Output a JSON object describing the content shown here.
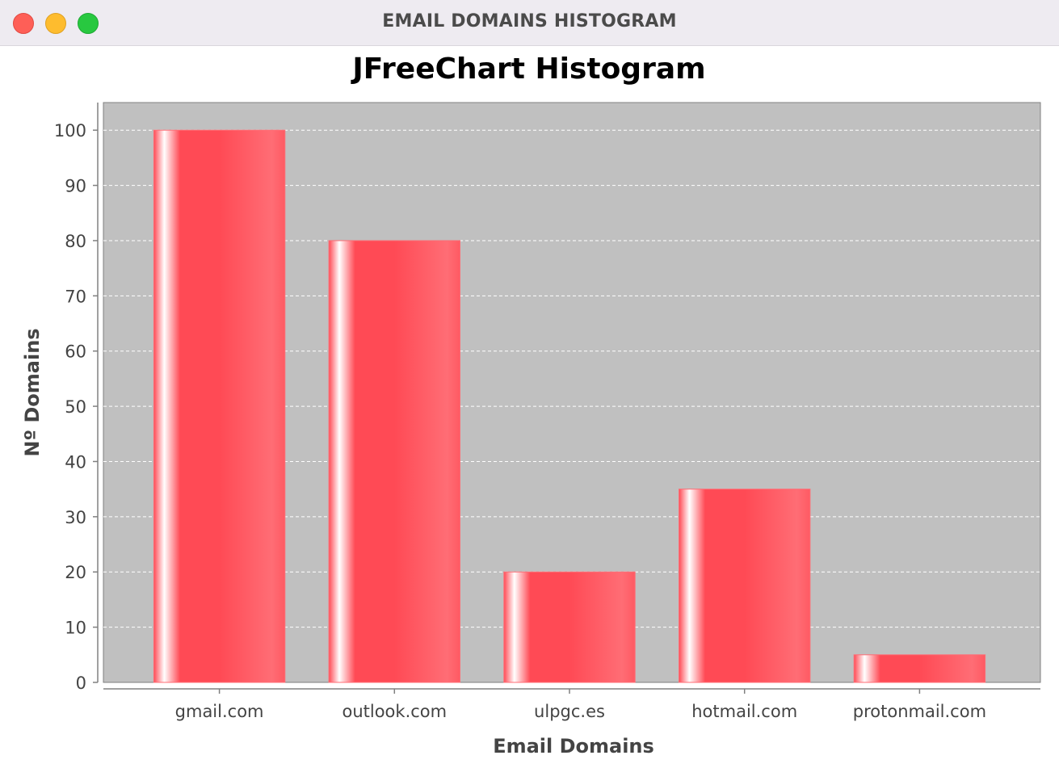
{
  "window": {
    "title": "EMAIL DOMAINS HISTOGRAM"
  },
  "colors": {
    "plot_background": "#c0c0c0",
    "bar": "#ff4a55",
    "bar_highlight": "#ffffff",
    "gridline": "#ffffff"
  },
  "chart_data": {
    "type": "bar",
    "title": "JFreeChart Histogram",
    "xlabel": "Email Domains",
    "ylabel": "Nº Domains",
    "categories": [
      "gmail.com",
      "outlook.com",
      "ulpgc.es",
      "hotmail.com",
      "protonmail.com"
    ],
    "values": [
      100,
      80,
      20,
      35,
      5
    ],
    "ylim": [
      0,
      105
    ],
    "yticks": [
      0,
      10,
      20,
      30,
      40,
      50,
      60,
      70,
      80,
      90,
      100
    ],
    "grid": true,
    "legend": "none"
  }
}
